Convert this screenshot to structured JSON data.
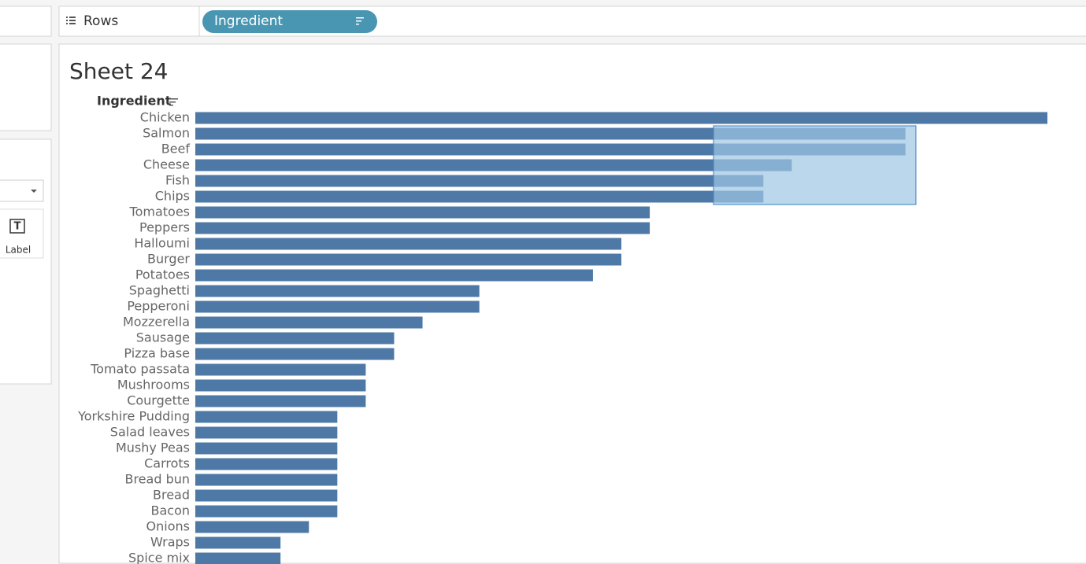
{
  "ui": {
    "rows_shelf": {
      "label": "Rows",
      "pill": "Ingredient"
    },
    "marks_card": {
      "label_button": "Label"
    }
  },
  "chart_data": {
    "type": "bar",
    "orientation": "horizontal",
    "title": "Sheet 24",
    "y_label": "Ingredient",
    "categories": [
      "Chicken",
      "Salmon",
      "Beef",
      "Cheese",
      "Fish",
      "Chips",
      "Tomatoes",
      "Peppers",
      "Halloumi",
      "Burger",
      "Potatoes",
      "Spaghetti",
      "Pepperoni",
      "Mozzerella",
      "Sausage",
      "Pizza base",
      "Tomato passata",
      "Mushrooms",
      "Courgette",
      "Yorkshire Pudding",
      "Salad leaves",
      "Mushy Peas",
      "Carrots",
      "Bread bun",
      "Bread",
      "Bacon",
      "Onions",
      "Wraps",
      "Spice mix"
    ],
    "values": [
      30,
      25,
      25,
      21,
      20,
      20,
      16,
      16,
      15,
      15,
      14,
      10,
      10,
      8,
      7,
      7,
      6,
      6,
      6,
      5,
      5,
      5,
      5,
      5,
      5,
      5,
      4,
      3,
      3
    ],
    "xlim": [
      0,
      30
    ],
    "color": "#4e79a7"
  }
}
